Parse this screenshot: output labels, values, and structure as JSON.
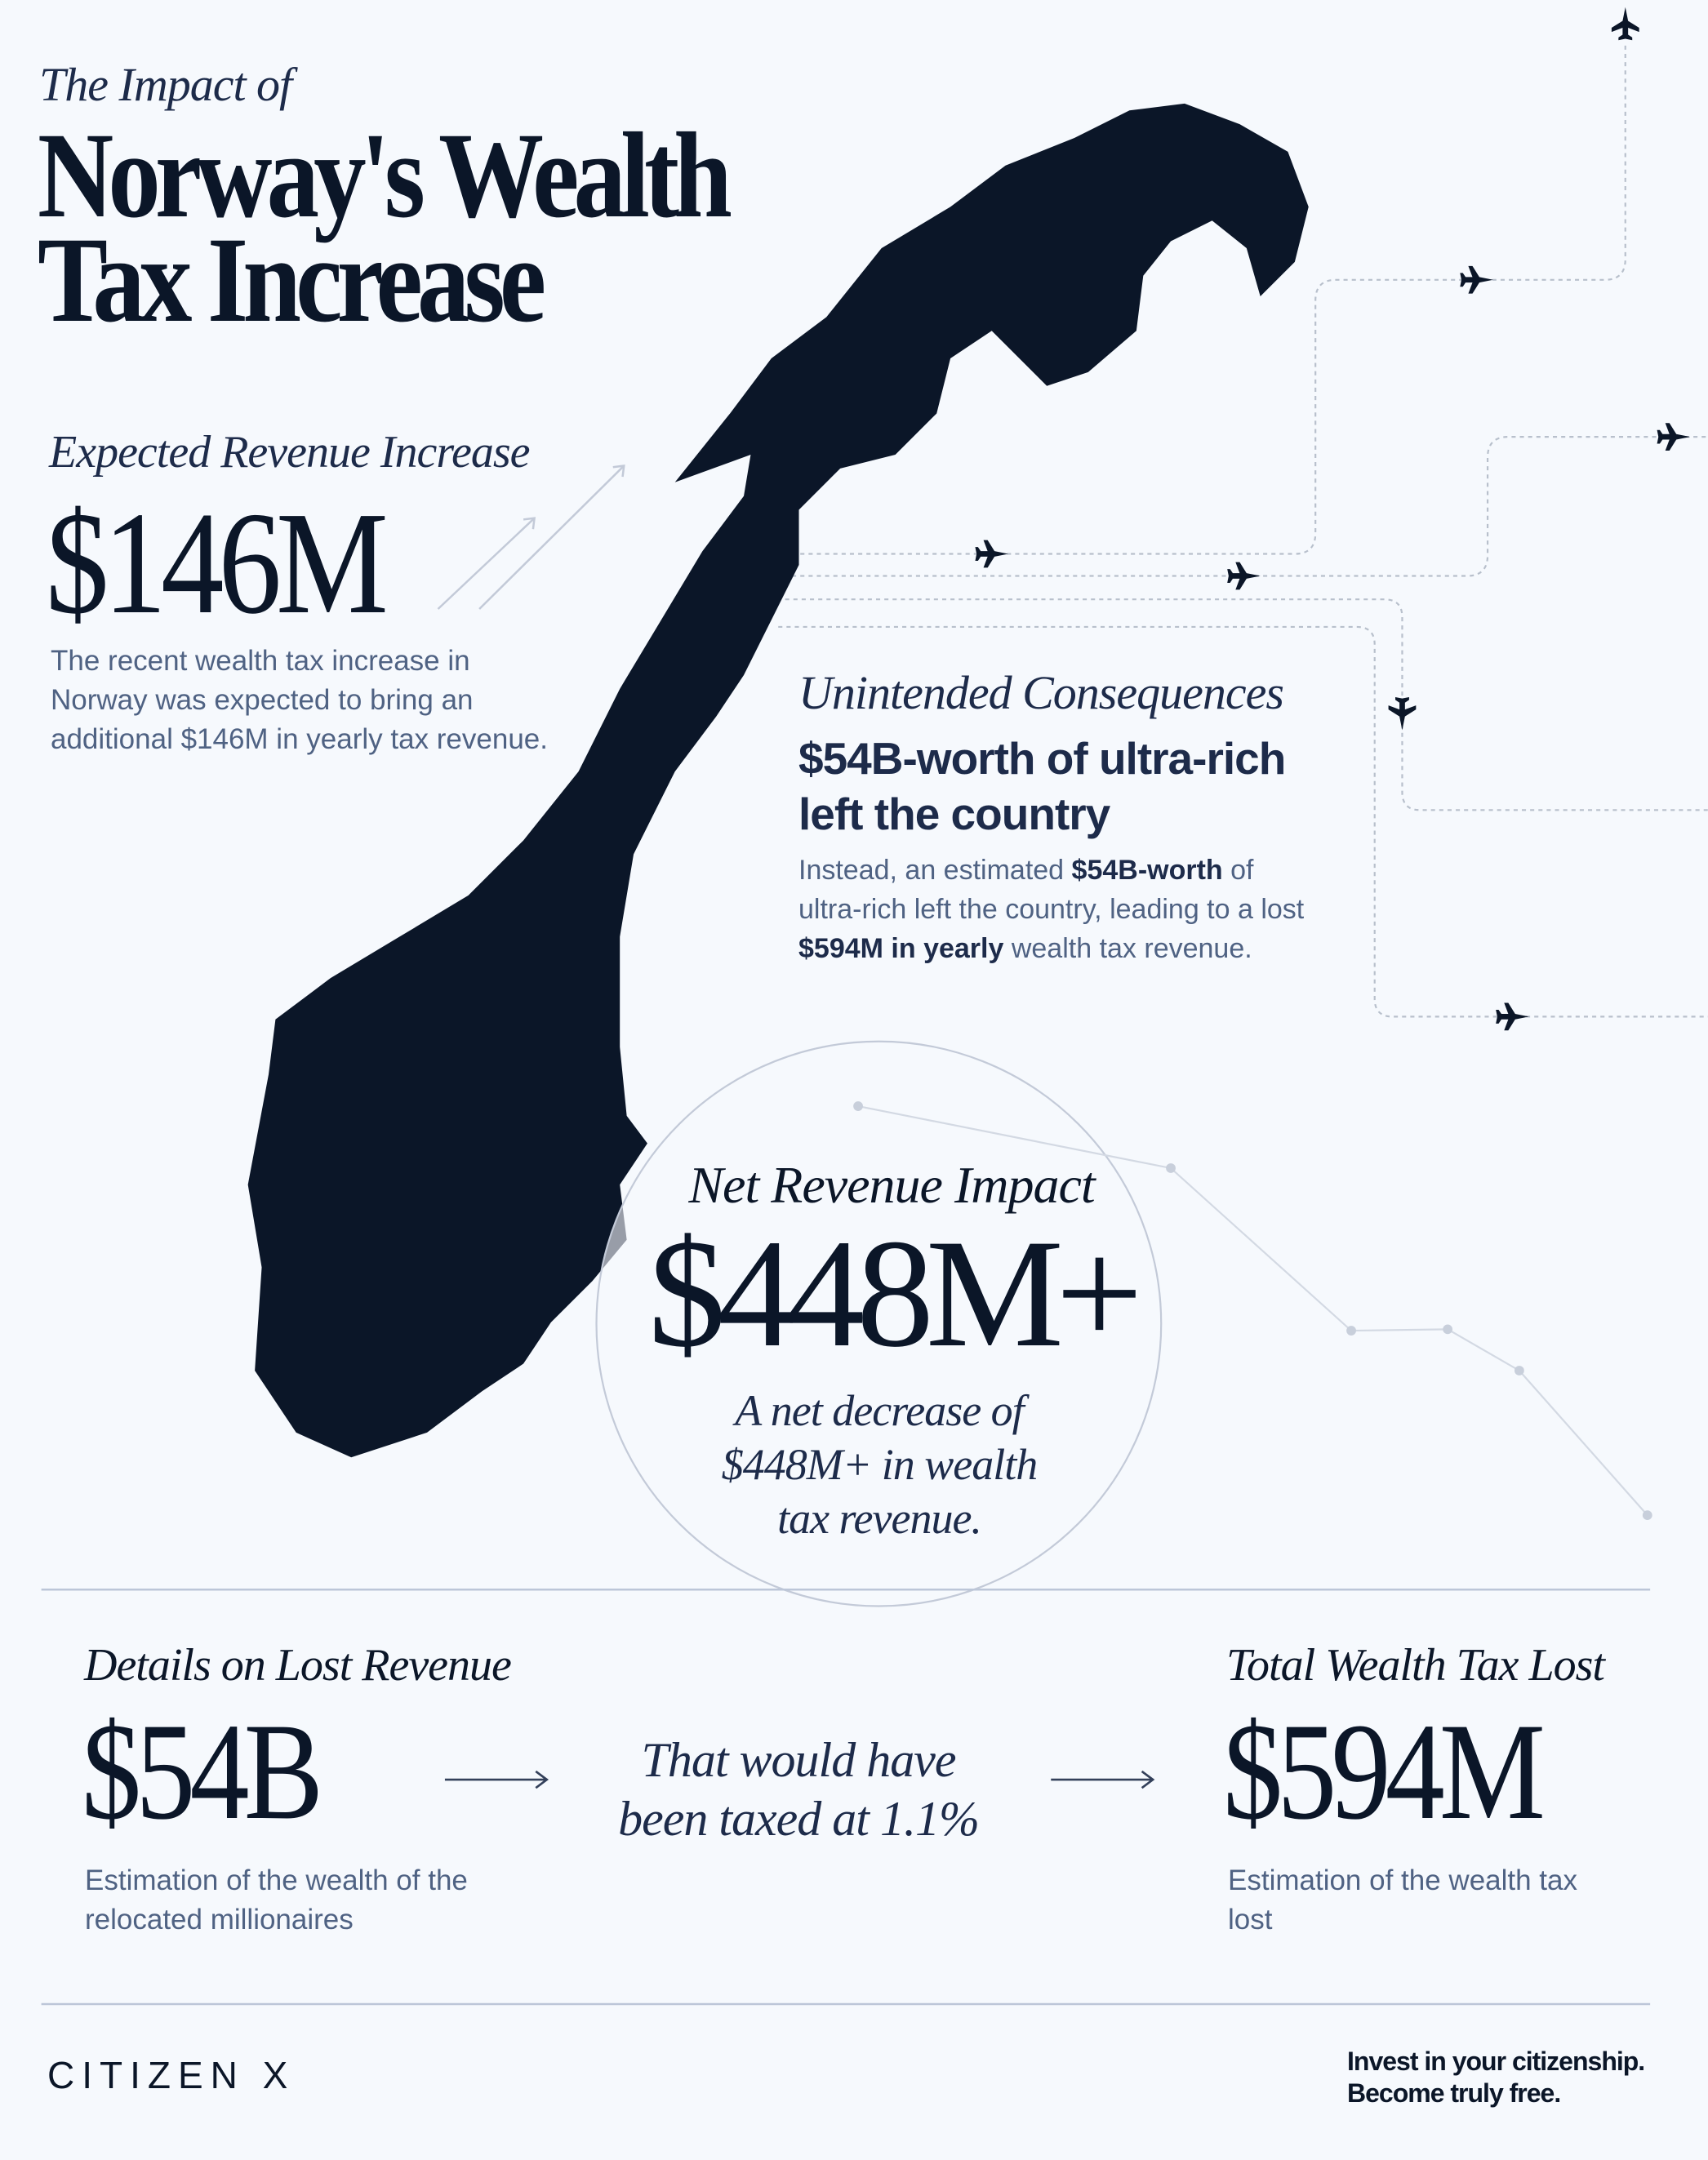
{
  "header": {
    "kicker": "The Impact of",
    "title_line1": "Norway's Wealth",
    "title_line2": "Tax Increase"
  },
  "expected": {
    "label": "Expected Revenue Increase",
    "value": "$146M",
    "text": "The recent wealth tax increase in Norway was expected to bring an additional $146M in yearly tax revenue."
  },
  "consequences": {
    "label": "Unintended Consequences",
    "heading": "$54B-worth of ultra-rich left the country",
    "text_1": "Instead, an estimated ",
    "text_bold_1": "$54B-worth",
    "text_2": " of ultra-rich left the country, leading to a lost ",
    "text_bold_2": "$594M in yearly",
    "text_3": " wealth tax revenue."
  },
  "net": {
    "label": "Net Revenue Impact",
    "value": "$448M+",
    "text": "A net decrease of $448M+ in wealth tax revenue."
  },
  "details": {
    "label": "Details on Lost Revenue",
    "value": "$54B",
    "text": "Estimation of the wealth of the relocated millionaires",
    "middle": "That would have been taxed at 1.1%",
    "total_label": "Total Wealth Tax Lost",
    "total_value": "$594M",
    "total_text": "Estimation of the wealth tax lost"
  },
  "footer": {
    "logo": "CITIZEN X",
    "tagline_1": "Invest in your citizenship.",
    "tagline_2": "Become truly free."
  },
  "colors": {
    "navy": "#0b1628",
    "text_muted": "#4f6283",
    "background": "#f6f9fd",
    "line": "#c3cad8"
  },
  "icons": [
    "airplane-icon",
    "arrow-right-icon",
    "arrow-up-right-icon",
    "norway-map"
  ]
}
